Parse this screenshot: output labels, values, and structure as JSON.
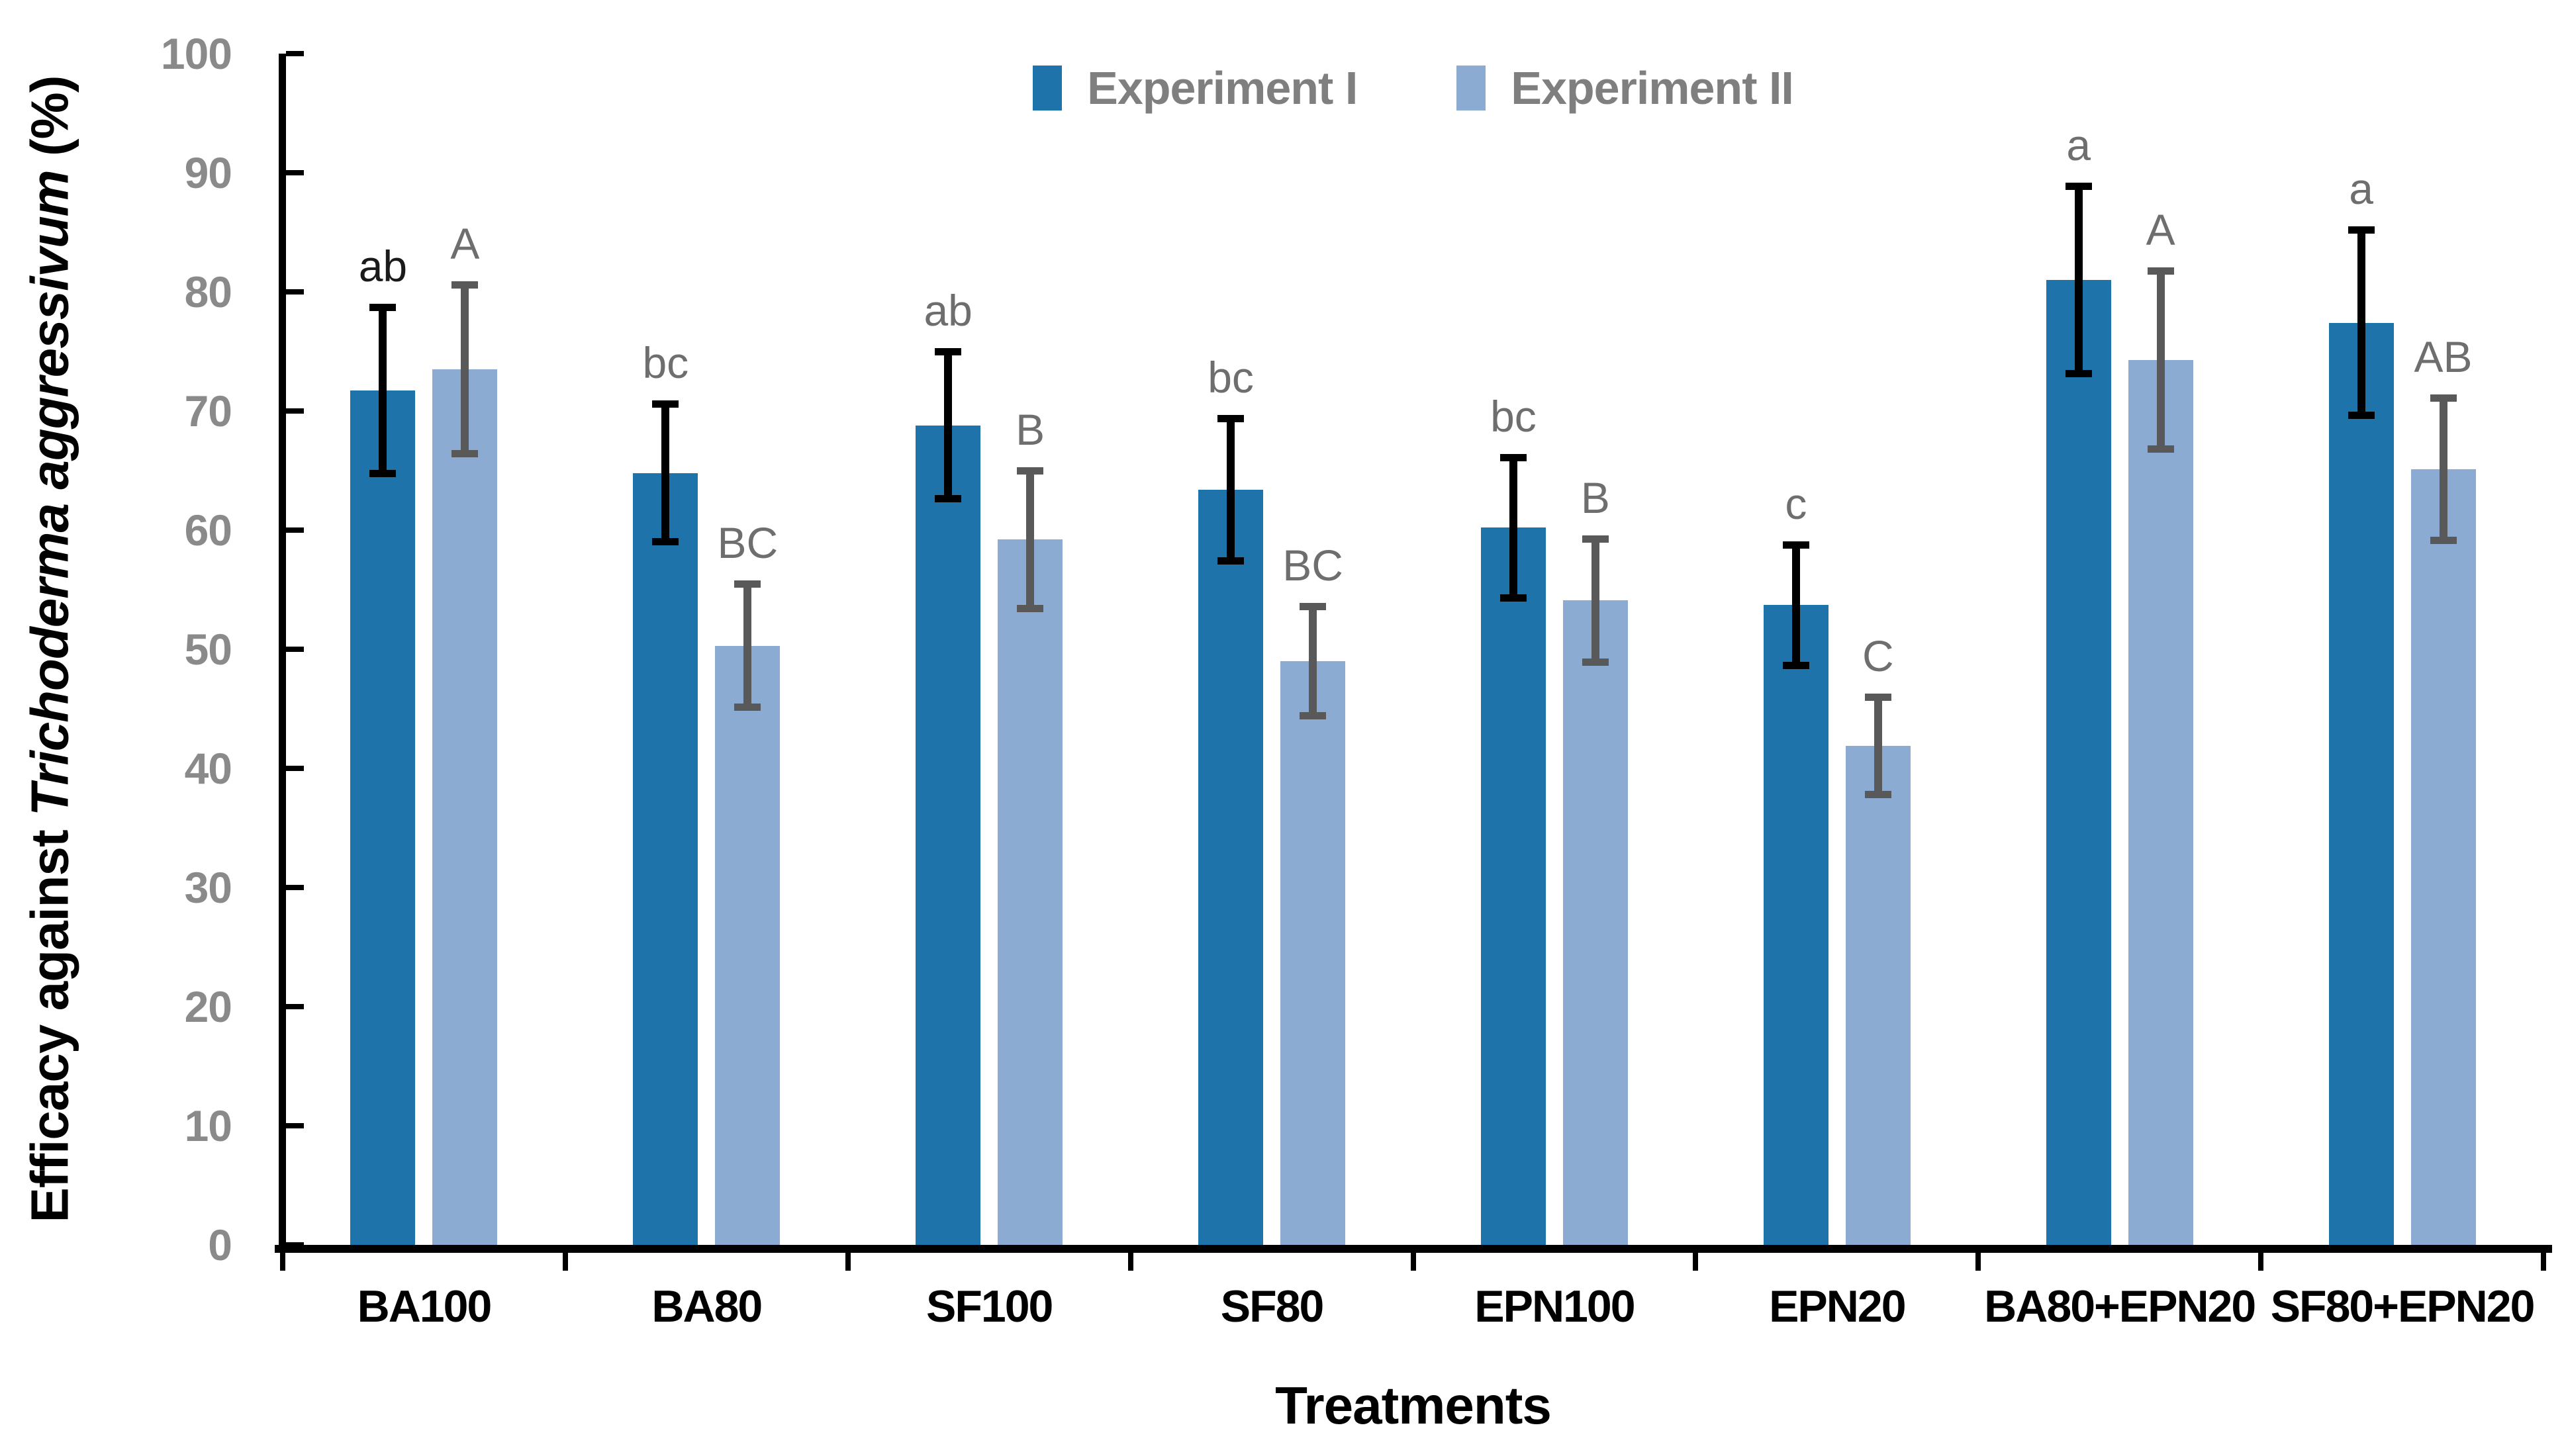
{
  "chart_data": {
    "type": "bar",
    "title": "",
    "xlabel": "Treatments",
    "ylabel": "Efficacy against Trichoderma aggressivum (%)",
    "ylabel_parts": {
      "prefix": "Efficacy against ",
      "italic": "Trichoderma aggressivum",
      "suffix": " (%)"
    },
    "ylim": [
      0,
      100
    ],
    "yticks": [
      0,
      10,
      20,
      30,
      40,
      50,
      60,
      70,
      80,
      90,
      100
    ],
    "grid": false,
    "legend_position": "top-center",
    "categories": [
      "BA100",
      "BA80",
      "SF100",
      "SF80",
      "EPN100",
      "EPN20",
      "BA80+EPN20",
      "SF80+EPN20"
    ],
    "series": [
      {
        "name": "Experiment I",
        "color": "#1E73AA",
        "error_color": "#000000",
        "values": [
          71.7,
          64.8,
          68.8,
          63.4,
          60.2,
          53.7,
          81.0,
          77.4
        ],
        "errors": [
          7.0,
          5.8,
          6.2,
          6.0,
          5.9,
          5.1,
          7.9,
          7.8
        ],
        "letters": [
          "ab",
          "bc",
          "ab",
          "bc",
          "bc",
          "c",
          "a",
          "a"
        ],
        "letter_colors": [
          "#1a1a1a",
          "#6e6e6e",
          "#6e6e6e",
          "#6e6e6e",
          "#6e6e6e",
          "#6e6e6e",
          "#6e6e6e",
          "#6e6e6e"
        ]
      },
      {
        "name": "Experiment II",
        "color": "#8CABD3",
        "error_color": "#595959",
        "values": [
          73.5,
          50.3,
          59.2,
          49.0,
          54.1,
          41.9,
          74.3,
          65.1
        ],
        "errors": [
          7.1,
          5.2,
          5.8,
          4.6,
          5.2,
          4.1,
          7.5,
          6.0
        ],
        "letters": [
          "A",
          "BC",
          "B",
          "BC",
          "B",
          "C",
          "A",
          "AB"
        ],
        "letter_colors": [
          "#6e6e6e",
          "#6e6e6e",
          "#6e6e6e",
          "#6e6e6e",
          "#6e6e6e",
          "#6e6e6e",
          "#6e6e6e",
          "#6e6e6e"
        ]
      }
    ],
    "colors": {
      "axis": "#000000",
      "tick_label": "#8a8a8a",
      "legend_text": "#7f7f7f",
      "background": "#ffffff"
    }
  }
}
